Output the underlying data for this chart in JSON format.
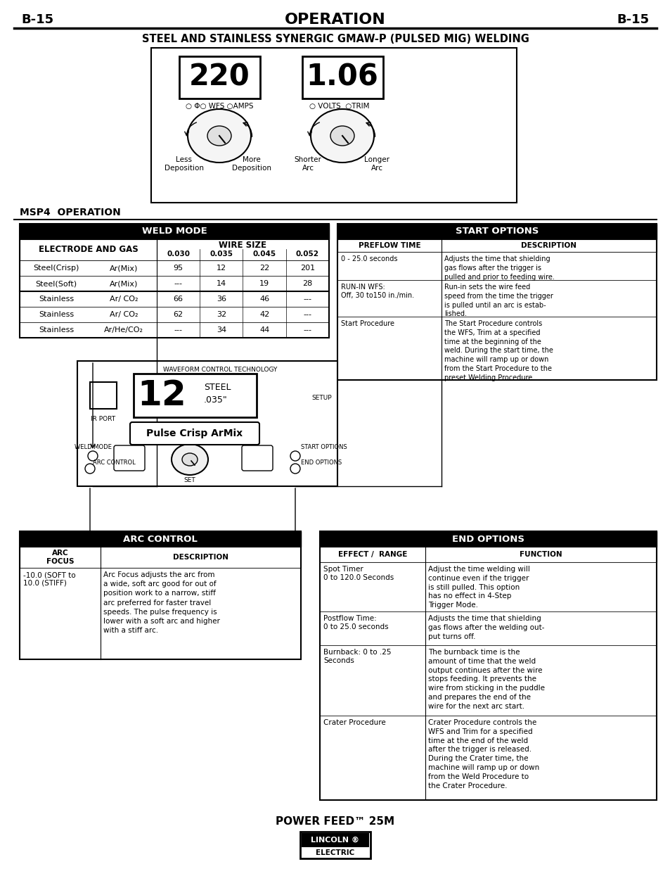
{
  "page_bg": "#ffffff",
  "header_left": "B-15",
  "header_center": "OPERATION",
  "header_right": "B-15",
  "subtitle": "STEEL AND STAINLESS SYNERGIC GMAW-P (PULSED MIG) WELDING",
  "display_left": "220",
  "display_right": "1.06",
  "msp4_title": "MSP4  OPERATION",
  "weld_mode_title": "WELD MODE",
  "weld_mode_col1": "ELECTRODE AND GAS",
  "wire_size_title": "WIRE SIZE",
  "wire_cols": [
    "0.030",
    "0.035",
    "0.045",
    "0.052"
  ],
  "weld_rows": [
    [
      "Steel(Crisp)",
      "Ar(Mix)",
      "95",
      "12",
      "22",
      "201"
    ],
    [
      "Steel(Soft)",
      "Ar(Mix)",
      "---",
      "14",
      "19",
      "28"
    ],
    [
      "Stainless",
      "Ar/ CO₂",
      "66",
      "36",
      "46",
      "---"
    ],
    [
      "Stainless",
      "Ar/ CO₂",
      "62",
      "32",
      "42",
      "---"
    ],
    [
      "Stainless",
      "Ar/He/CO₂",
      "---",
      "34",
      "44",
      "---"
    ]
  ],
  "start_options_title": "START OPTIONS",
  "start_col1": "PREFLOW TIME",
  "start_col2": "DESCRIPTION",
  "start_rows": [
    [
      "0 - 25.0 seconds",
      "Adjusts the time that shielding\ngas flows after the trigger is\npulled and prior to feeding wire."
    ],
    [
      "RUN-IN WFS:\nOff, 30 to150 in./min.",
      "Run-in sets the wire feed\nspeed from the time the trigger\nis pulled until an arc is estab-\nlished."
    ],
    [
      "Start Procedure",
      "The Start Procedure controls\nthe WFS, Trim at a specified\ntime at the beginning of the\nweld. During the start time, the\nmachine will ramp up or down\nfrom the Start Procedure to the\npreset Welding Procedure."
    ]
  ],
  "machine_label_wct": "WAVEFORM CONTROL TECHNOLOGY",
  "machine_number": "12",
  "machine_steel": "STEEL",
  "machine_size": ".035\"",
  "machine_program": "Pulse Crisp ArMix",
  "arc_control_title": "ARC CONTROL",
  "arc_col1": "ARC\nFOCUS",
  "arc_col2": "DESCRIPTION",
  "arc_row_left": "-10.0 (SOFT to\n10.0 (STIFF)",
  "arc_row_right": "Arc Focus adjusts the arc from\na wide, soft arc good for out of\nposition work to a narrow, stiff\narc preferred for faster travel\nspeeds. The pulse frequency is\nlower with a soft arc and higher\nwith a stiff arc.",
  "end_options_title": "END OPTIONS",
  "end_col1": "EFFECT /  RANGE",
  "end_col2": "FUNCTION",
  "end_rows": [
    [
      "Spot Timer\n0 to 120.0 Seconds",
      "Adjust the time welding will\ncontinue even if the trigger\nis still pulled. This option\nhas no effect in 4-Step\nTrigger Mode."
    ],
    [
      "Postflow Time:\n0 to 25.0 seconds",
      "Adjusts the time that shielding\ngas flows after the welding out-\nput turns off."
    ],
    [
      "Burnback: 0 to .25\nSeconds",
      "The burnback time is the\namount of time that the weld\noutput continues after the wire\nstops feeding. It prevents the\nwire from sticking in the puddle\nand prepares the end of the\nwire for the next arc start."
    ],
    [
      "Crater Procedure",
      "Crater Procedure controls the\nWFS and Trim for a specified\ntime at the end of the weld\nafter the trigger is released.\nDuring the Crater time, the\nmachine will ramp up or down\nfrom the Weld Procedure to\nthe Crater Procedure."
    ]
  ],
  "footer": "POWER FEED™ 25M"
}
